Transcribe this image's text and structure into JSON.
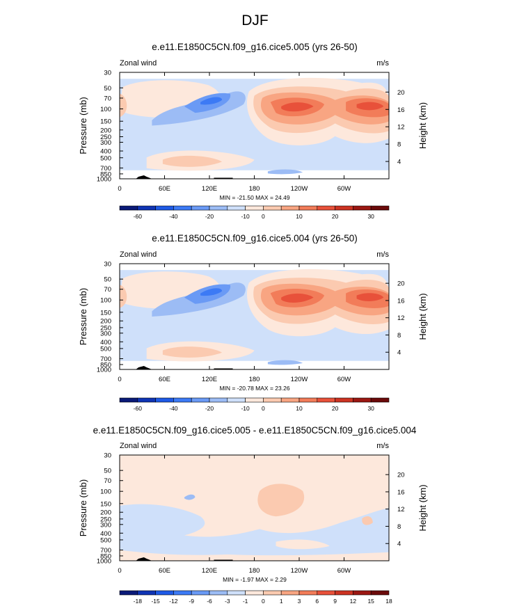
{
  "title": "DJF",
  "colors": {
    "wind": [
      "#0a1a78",
      "#0f34b4",
      "#1e5ae6",
      "#3c7af5",
      "#6a9af5",
      "#9cbcf5",
      "#cfe0fa",
      "#fde8dc",
      "#fbcab0",
      "#f8a582",
      "#f27c59",
      "#e8513a",
      "#cc3322",
      "#9b1712",
      "#6b0a0a"
    ],
    "diff": [
      "#0a1a78",
      "#0f34b4",
      "#1e5ae6",
      "#3c7af5",
      "#6a9af5",
      "#9cbcf5",
      "#cfe0fa",
      "#fde8dc",
      "#fbcab0",
      "#f8a582",
      "#f27c59",
      "#e8513a",
      "#cc3322",
      "#9b1712",
      "#6b0a0a"
    ]
  },
  "chart_data": [
    {
      "type": "heatmap",
      "title": "e.e11.E1850C5CN.f09_g16.cice5.005 (yrs 26-50)",
      "left_label": "Zonal wind",
      "units": "m/s",
      "ylabel": "Pressure (mb)",
      "y2label": "Height (km)",
      "x_ticks": [
        "0",
        "60E",
        "120E",
        "180",
        "120W",
        "60W"
      ],
      "y_ticks": [
        "30",
        "50",
        "70",
        "100",
        "150",
        "200",
        "250",
        "300",
        "400",
        "500",
        "700",
        "850",
        "1000"
      ],
      "y2_ticks": [
        "20",
        "16",
        "12",
        "8",
        "4"
      ],
      "stats": "MIN = -21.50  MAX = 24.49",
      "colorbar_labels": [
        "-60",
        "-40",
        "-20",
        "-10",
        "0",
        "10",
        "20",
        "30"
      ],
      "colormap": "wind"
    },
    {
      "type": "heatmap",
      "title": "e.e11.E1850C5CN.f09_g16.cice5.004 (yrs 26-50)",
      "left_label": "Zonal wind",
      "units": "m/s",
      "ylabel": "Pressure (mb)",
      "y2label": "Height (km)",
      "x_ticks": [
        "0",
        "60E",
        "120E",
        "180",
        "120W",
        "60W"
      ],
      "y_ticks": [
        "30",
        "50",
        "70",
        "100",
        "150",
        "200",
        "250",
        "300",
        "400",
        "500",
        "700",
        "850",
        "1000"
      ],
      "y2_ticks": [
        "20",
        "16",
        "12",
        "8",
        "4"
      ],
      "stats": "MIN = -20.78  MAX = 23.26",
      "colorbar_labels": [
        "-60",
        "-40",
        "-20",
        "-10",
        "0",
        "10",
        "20",
        "30"
      ],
      "colormap": "wind"
    },
    {
      "type": "heatmap",
      "title": "e.e11.E1850C5CN.f09_g16.cice5.005 - e.e11.E1850C5CN.f09_g16.cice5.004",
      "left_label": "Zonal wind",
      "units": "m/s",
      "ylabel": "Pressure (mb)",
      "y2label": "Height (km)",
      "x_ticks": [
        "0",
        "60E",
        "120E",
        "180",
        "120W",
        "60W"
      ],
      "y_ticks": [
        "30",
        "50",
        "70",
        "100",
        "150",
        "200",
        "250",
        "300",
        "400",
        "500",
        "700",
        "850",
        "1000"
      ],
      "y2_ticks": [
        "20",
        "16",
        "12",
        "8",
        "4"
      ],
      "stats": "MIN = -1.97  MAX =  2.29",
      "colorbar_labels": [
        "-18",
        "-15",
        "-12",
        "-9",
        "-6",
        "-3",
        "-1",
        "0",
        "1",
        "3",
        "6",
        "9",
        "12",
        "15",
        "18"
      ],
      "colormap": "diff"
    }
  ]
}
